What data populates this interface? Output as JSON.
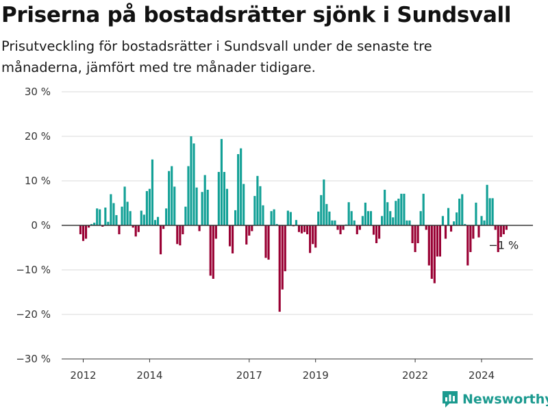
{
  "title": "Priserna på bostadsrätter sjönk i Sundsvall",
  "subtitle": "Prisutveckling för bostadsrätter i Sundsvall under de senaste tre månaderna, jämfört med tre månader tidigare.",
  "brand": {
    "name": "Newsworthy",
    "icon": "newsworthy-logo-icon"
  },
  "colors": {
    "positive": "#12a096",
    "negative": "#990033",
    "grid": "#d9d9d9",
    "baseline": "#333333"
  },
  "chart_data": {
    "type": "bar",
    "xlabel": "",
    "ylabel": "",
    "ylim": [
      -30,
      30
    ],
    "yticks": [
      30,
      20,
      10,
      0,
      -10,
      -20,
      -30
    ],
    "ytick_labels": [
      "30 %",
      "20 %",
      "10 %",
      "0 %",
      "−10 %",
      "−20 %",
      "−30 %"
    ],
    "xticks": [
      2012,
      2014,
      2017,
      2019,
      2022,
      2024
    ],
    "xtick_labels": [
      "2012",
      "2014",
      "2017",
      "2019",
      "2022",
      "2024"
    ],
    "x_range": [
      2010.9,
      2026.0
    ],
    "bar_width_years": 0.065,
    "series": [
      {
        "x": [
          2011.917,
          2012.0,
          2012.083,
          2012.167,
          2012.25,
          2012.333,
          2012.417,
          2012.5,
          2012.583,
          2012.667,
          2012.75,
          2012.833,
          2012.917,
          2013.0,
          2013.083,
          2013.167,
          2013.25,
          2013.333,
          2013.417,
          2013.5,
          2013.583,
          2013.667,
          2013.75,
          2013.833,
          2013.917,
          2014.0,
          2014.083,
          2014.167,
          2014.25,
          2014.333,
          2014.417,
          2014.5,
          2014.583,
          2014.667,
          2014.75,
          2014.833,
          2014.917,
          2015.0,
          2015.083,
          2015.167,
          2015.25,
          2015.333,
          2015.417,
          2015.5,
          2015.583,
          2015.667,
          2015.75,
          2015.833,
          2015.917,
          2016.0,
          2016.083,
          2016.167,
          2016.25,
          2016.333,
          2016.417,
          2016.5,
          2016.583,
          2016.667,
          2016.75,
          2016.833,
          2016.917,
          2017.0,
          2017.083,
          2017.167,
          2017.25,
          2017.333,
          2017.417,
          2017.5,
          2017.583,
          2017.667,
          2017.75,
          2017.833,
          2017.917,
          2018.0,
          2018.083,
          2018.167,
          2018.25,
          2018.333,
          2018.417,
          2018.5,
          2018.583,
          2018.667,
          2018.75,
          2018.833,
          2018.917,
          2019.0,
          2019.083,
          2019.167,
          2019.25,
          2019.333,
          2019.417,
          2019.5,
          2019.583,
          2019.667,
          2019.75,
          2019.833,
          2019.917,
          2020.0,
          2020.083,
          2020.167,
          2020.25,
          2020.333,
          2020.417,
          2020.5,
          2020.583,
          2020.667,
          2020.75,
          2020.833,
          2020.917,
          2021.0,
          2021.083,
          2021.167,
          2021.25,
          2021.333,
          2021.417,
          2021.5,
          2021.583,
          2021.667,
          2021.75,
          2021.833,
          2021.917,
          2022.0,
          2022.083,
          2022.167,
          2022.25,
          2022.333,
          2022.417,
          2022.5,
          2022.583,
          2022.667,
          2022.75,
          2022.833,
          2022.917,
          2023.0,
          2023.083,
          2023.167,
          2023.25,
          2023.333,
          2023.417,
          2023.5,
          2023.583,
          2023.667,
          2023.75,
          2023.833,
          2023.917,
          2024.0,
          2024.083,
          2024.167,
          2024.25,
          2024.333,
          2024.417,
          2024.5,
          2024.583,
          2024.667,
          2024.75
        ],
        "values": [
          -2,
          -3.5,
          -3,
          -0.5,
          0.3,
          0.6,
          3.8,
          3.6,
          -0.3,
          4,
          0.8,
          7,
          5,
          2.3,
          -2,
          4.2,
          8.7,
          5.3,
          3.2,
          -0.5,
          -2.5,
          -1.5,
          3.3,
          2.4,
          7.7,
          8.2,
          14.8,
          1.2,
          1.9,
          -6.5,
          -0.8,
          3.8,
          12.2,
          13.3,
          8.7,
          -4.2,
          -4.5,
          -2,
          4.2,
          13.3,
          20,
          18.4,
          8.5,
          -1.3,
          7.5,
          11.3,
          8,
          -11.3,
          -12,
          -3,
          12,
          19.4,
          12,
          8.2,
          -4.7,
          -6.3,
          3.4,
          16,
          17.3,
          9.3,
          -4.3,
          -2.3,
          -1.3,
          6.6,
          11.1,
          8.8,
          4.5,
          -7.3,
          -7.7,
          3.2,
          3.6,
          0.3,
          -19.4,
          -14.4,
          -10.3,
          3.3,
          3,
          -0.2,
          1.2,
          -1.5,
          -1.8,
          -1.5,
          -2,
          -6.2,
          -4.2,
          -5,
          3.1,
          6.8,
          10.3,
          4.8,
          3.1,
          1.1,
          1.1,
          -1,
          -2,
          -1,
          0.2,
          5.2,
          3.2,
          1.1,
          -2,
          -1,
          2.1,
          5.1,
          3.2,
          3.2,
          -2.1,
          -4,
          -3,
          2.1,
          8,
          5.2,
          3.2,
          1.8,
          5.5,
          6,
          7.1,
          7.1,
          1.1,
          1.1,
          -4,
          -6,
          -4,
          3.2,
          7.1,
          -1,
          -9,
          -12,
          -13,
          -7,
          -7,
          2.1,
          -3,
          3.9,
          -1.4,
          0.9,
          2.9,
          6,
          7,
          0.3,
          -9,
          -6,
          -3,
          5.1,
          -2.7,
          2.1,
          1.1,
          9.1,
          6.1,
          6.1,
          -1,
          -6,
          -2.6,
          -2,
          -1
        ]
      }
    ],
    "annotation": {
      "label": "−1 %",
      "x": 2024.75,
      "y": -1
    }
  }
}
